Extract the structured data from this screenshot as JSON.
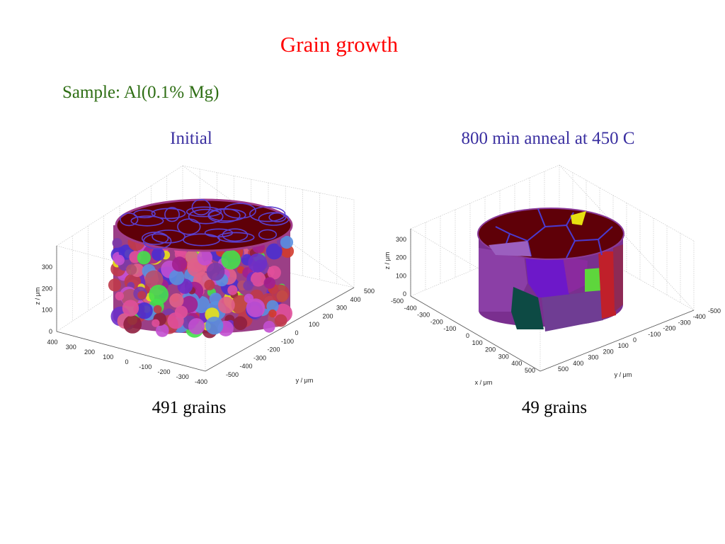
{
  "title": "Grain growth",
  "sample": "Sample: Al(0.1% Mg)",
  "colors": {
    "title": "#ff0000",
    "sample": "#2e6e14",
    "panel_title": "#3a2fa0",
    "caption": "#000000",
    "grain_top": "#6e0008",
    "grain_boundary": "#4b3ad0"
  },
  "chart_data": [
    {
      "type": "3d-volume",
      "title": "Initial",
      "caption": "491 grains",
      "grain_count": 491,
      "xlabel": "",
      "ylabel": "y / μm",
      "zlabel": "z / μm",
      "x_ticks": [
        "400",
        "300",
        "200",
        "100",
        "0",
        "-100",
        "-200",
        "-300",
        "-400"
      ],
      "y_ticks": [
        "-500",
        "-400",
        "-300",
        "-200",
        "-100",
        "0",
        "100",
        "200",
        "300",
        "400",
        "500"
      ],
      "z_ticks": [
        "0",
        "100",
        "200",
        "300"
      ],
      "xlim": [
        -400,
        400
      ],
      "ylim": [
        -500,
        500
      ],
      "zlim": [
        0,
        380
      ],
      "grid": true
    },
    {
      "type": "3d-volume",
      "title": "800 min anneal at 450 C",
      "caption": "49 grains",
      "grain_count": 49,
      "xlabel": "x / μm",
      "ylabel": "y / μm",
      "zlabel": "z / μm",
      "x_ticks": [
        "-500",
        "-400",
        "-300",
        "-200",
        "-100",
        "0",
        "100",
        "200",
        "300",
        "400",
        "500"
      ],
      "y_ticks": [
        "500",
        "400",
        "300",
        "200",
        "100",
        "0",
        "-100",
        "-200",
        "-300",
        "-400",
        "-500"
      ],
      "z_ticks": [
        "0",
        "100",
        "200",
        "300"
      ],
      "xlim": [
        -500,
        500
      ],
      "ylim": [
        -500,
        500
      ],
      "zlim": [
        0,
        380
      ],
      "grid": true
    }
  ]
}
